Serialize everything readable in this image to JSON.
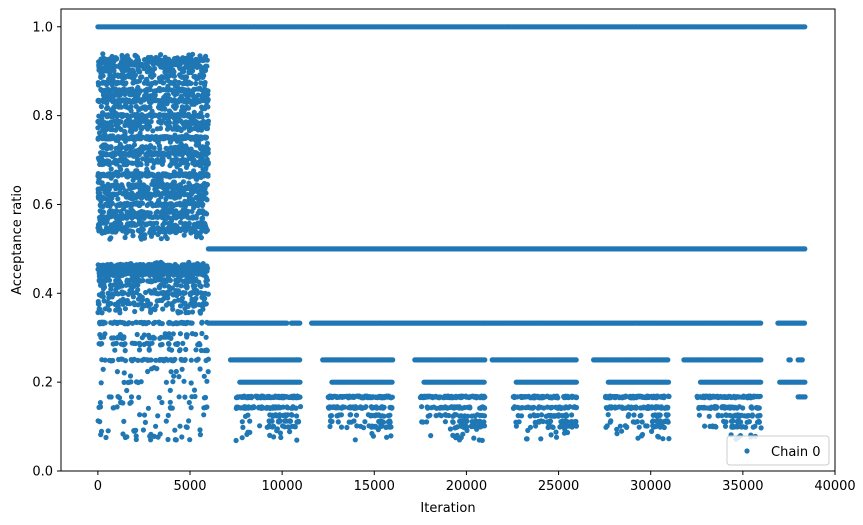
{
  "chart_data": {
    "type": "scatter",
    "title": "",
    "xlabel": "Iteration",
    "ylabel": "Acceptance ratio",
    "xlim": [
      -2000,
      40000
    ],
    "ylim": [
      0.0,
      1.04
    ],
    "xticks": [
      0,
      5000,
      10000,
      15000,
      20000,
      25000,
      30000,
      35000,
      40000
    ],
    "xtick_labels": [
      "0",
      "5000",
      "10000",
      "15000",
      "20000",
      "25000",
      "30000",
      "35000",
      "40000"
    ],
    "yticks": [
      0.0,
      0.2,
      0.4,
      0.6,
      0.8,
      1.0
    ],
    "ytick_labels": [
      "0.0",
      "0.2",
      "0.4",
      "0.6",
      "0.8",
      "1.0"
    ],
    "grid": false,
    "legend_position": "bottom-right",
    "color": "#1f77b4",
    "series": [
      {
        "name": "Chain 0",
        "marker": "dot",
        "segments": [
          {
            "x_range": [
              0,
              6000
            ],
            "y": 1.0
          },
          {
            "x_range": [
              6000,
              38400
            ],
            "y": 1.0
          },
          {
            "x_range": [
              0,
              6000
            ],
            "y_band": [
              0.52,
              0.94
            ],
            "description": "dense scatter"
          },
          {
            "x_range": [
              6000,
              38400
            ],
            "y": 0.5
          },
          {
            "x_range": [
              0,
              6000
            ],
            "y_band": [
              0.07,
              0.47
            ],
            "description": "sparse scatter"
          },
          {
            "x_range": [
              6000,
              36000
            ],
            "y": 0.333
          },
          {
            "x_range": [
              37000,
              38400
            ],
            "y": 0.333
          },
          {
            "x_range": [
              7000,
              36000
            ],
            "y": 0.25
          },
          {
            "x_range": [
              37500,
              38400
            ],
            "y": 0.25
          },
          {
            "x_range": [
              7500,
              36000
            ],
            "y_band": [
              0.05,
              0.2
            ],
            "description": "clustered scatter"
          }
        ]
      }
    ]
  }
}
